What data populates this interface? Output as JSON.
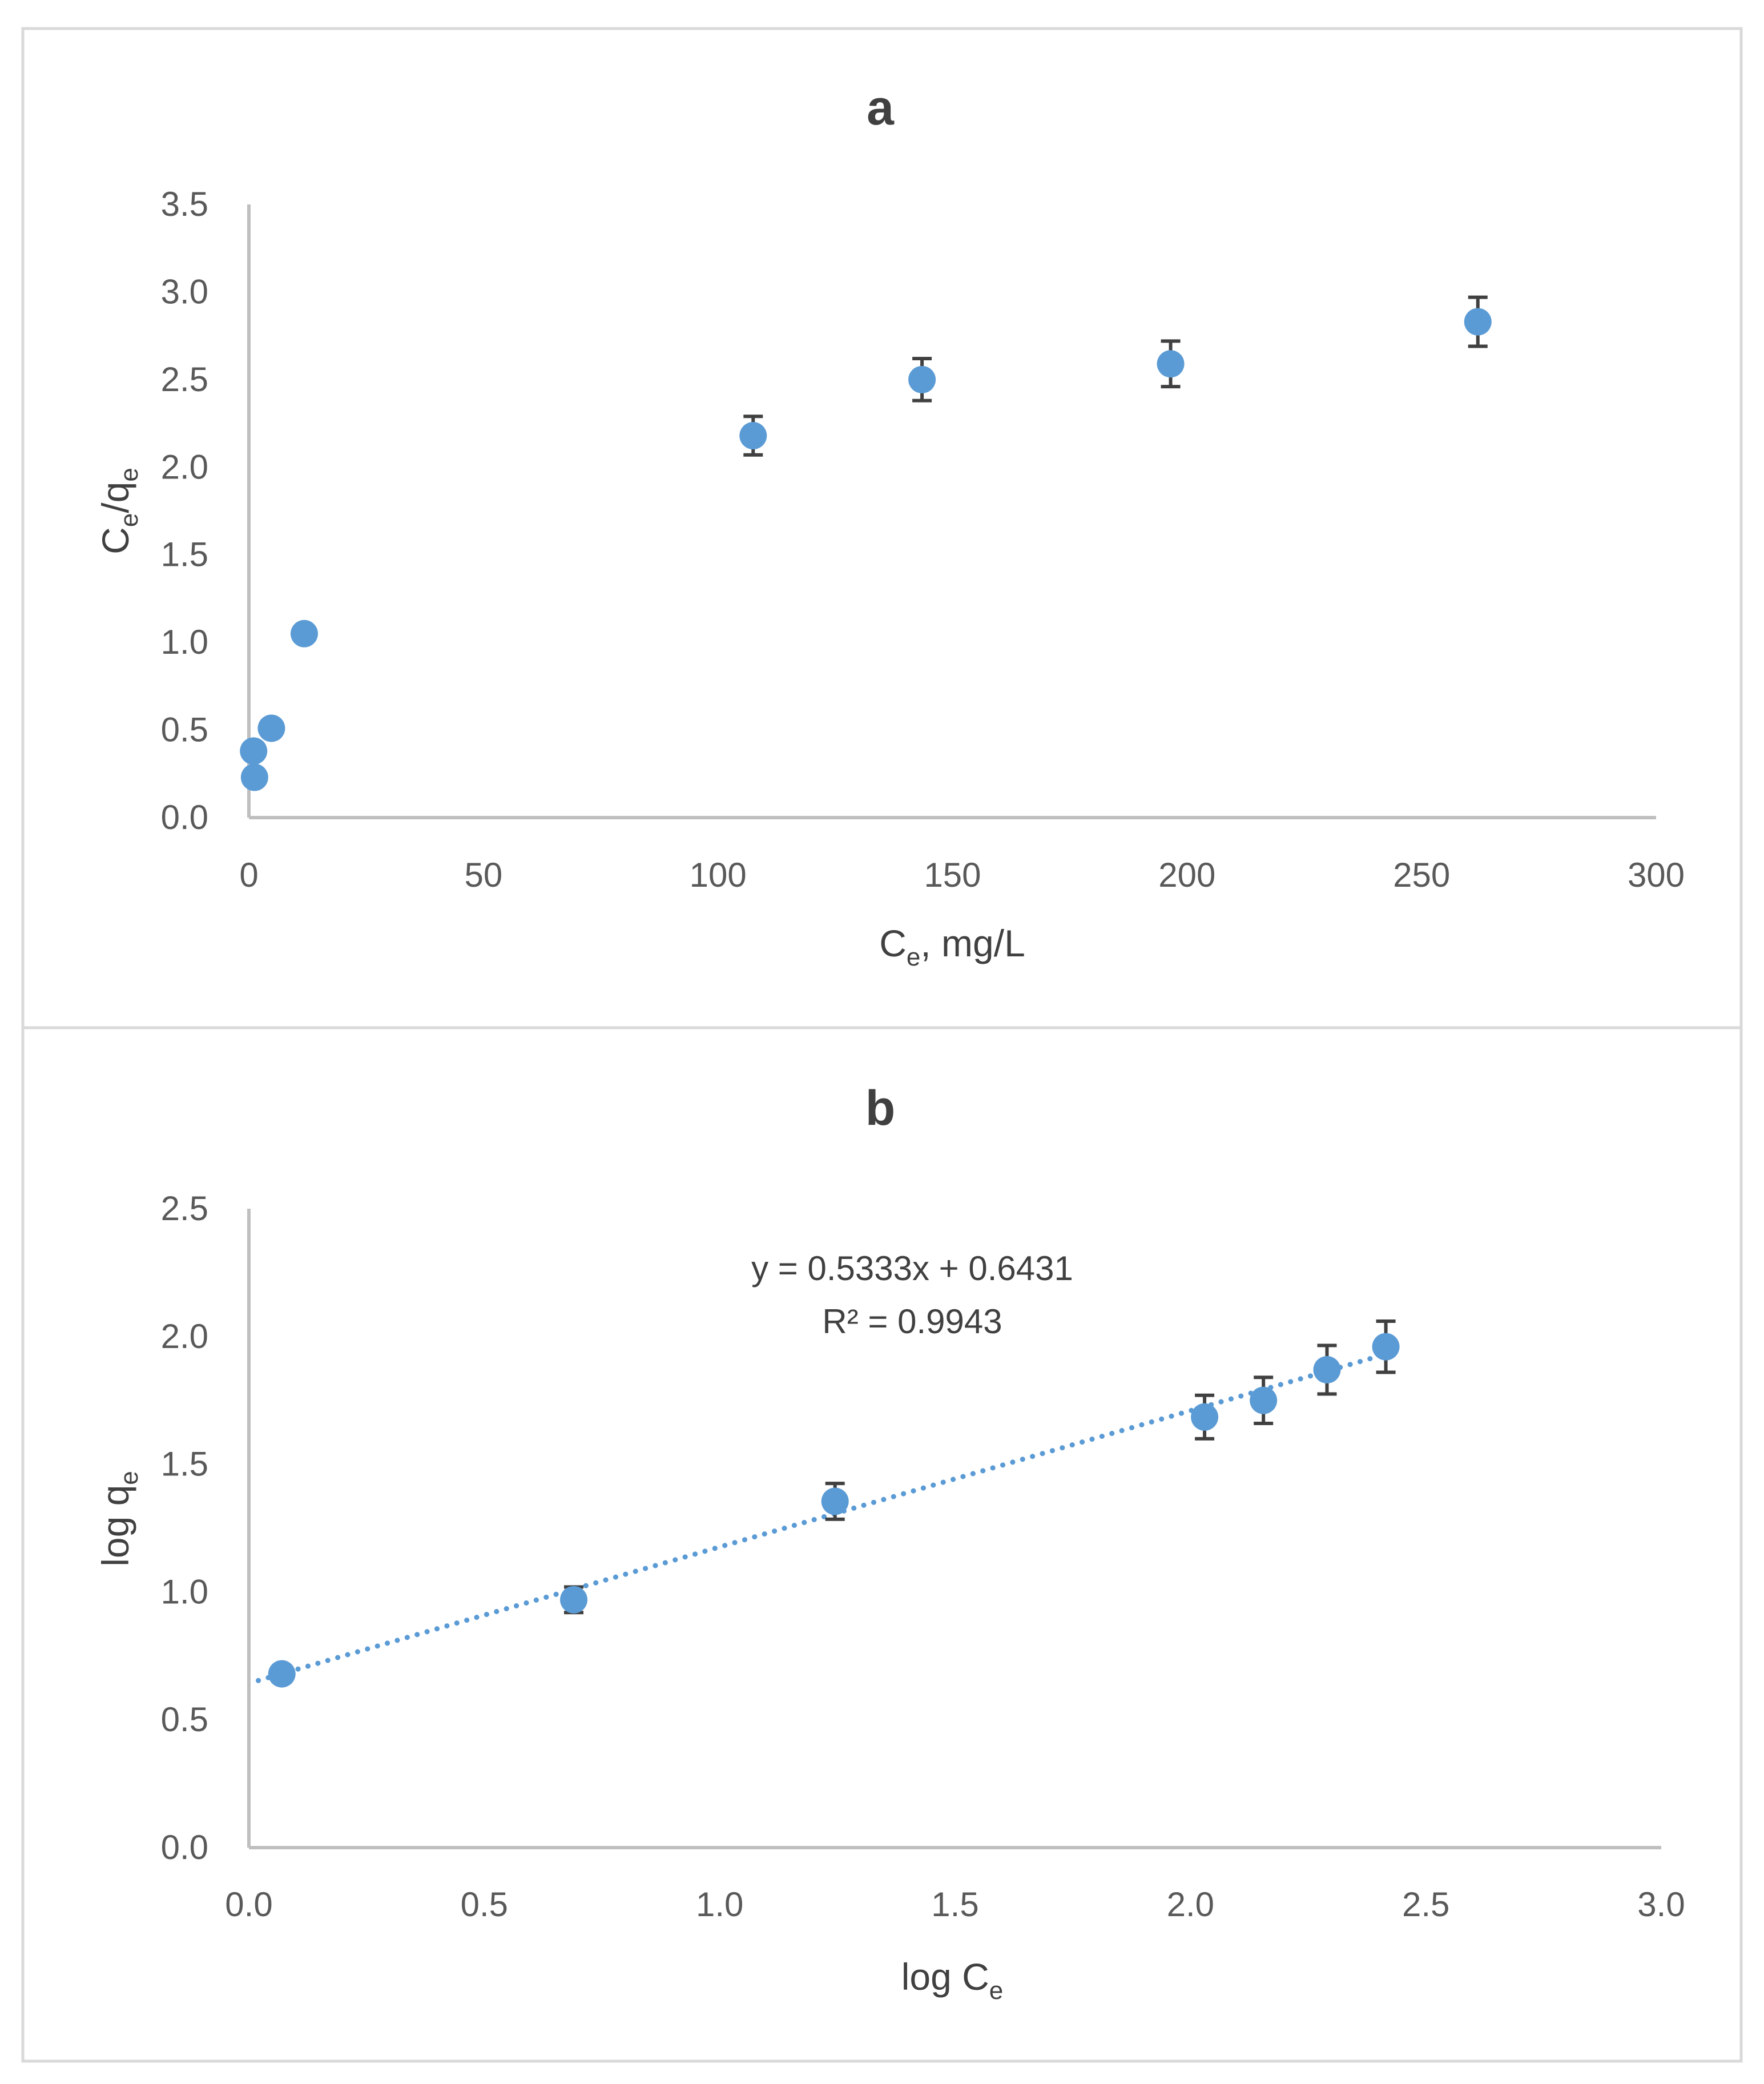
{
  "colors": {
    "marker": "#5b9bd5",
    "error_bar": "#404040",
    "trendline": "#5b9bd5",
    "axis": "#bfbfbf",
    "text": "#595959"
  },
  "chart_data": [
    {
      "type": "scatter",
      "title": "a",
      "xlabel": {
        "main": "C",
        "sub": "e",
        "tail": ", mg/L"
      },
      "ylabel": {
        "main": "C",
        "sub1": "e",
        "mid": "/q",
        "sub2": "e"
      },
      "xlim": [
        0,
        300
      ],
      "ylim": [
        0,
        3.5
      ],
      "xticks": [
        "0",
        "50",
        "100",
        "150",
        "200",
        "250",
        "300"
      ],
      "yticks": [
        "0.0",
        "0.5",
        "1.0",
        "1.5",
        "2.0",
        "2.5",
        "3.0",
        "3.5"
      ],
      "points": [
        {
          "x": 1,
          "y": 0.38,
          "err": 0.02
        },
        {
          "x": 1.2,
          "y": 0.23,
          "err": 0.02
        },
        {
          "x": 4.8,
          "y": 0.51,
          "err": 0.02
        },
        {
          "x": 11.8,
          "y": 1.05,
          "err": 0.03
        },
        {
          "x": 107.5,
          "y": 2.18,
          "err": 0.11
        },
        {
          "x": 143.5,
          "y": 2.5,
          "err": 0.12
        },
        {
          "x": 196.5,
          "y": 2.59,
          "err": 0.13
        },
        {
          "x": 262,
          "y": 2.83,
          "err": 0.14
        }
      ]
    },
    {
      "type": "scatter",
      "title": "b",
      "xlabel": {
        "main": "log C",
        "sub": "e",
        "tail": ""
      },
      "ylabel": {
        "main": "log q",
        "sub": "e"
      },
      "xlim": [
        0,
        3
      ],
      "ylim": [
        0,
        2.5
      ],
      "xticks": [
        "0.0",
        "0.5",
        "1.0",
        "1.5",
        "2.0",
        "2.5",
        "3.0"
      ],
      "yticks": [
        "0.0",
        "0.5",
        "1.0",
        "1.5",
        "2.0",
        "2.5"
      ],
      "points": [
        {
          "x": 0.07,
          "y": 0.68,
          "err": 0.02
        },
        {
          "x": 0.69,
          "y": 0.97,
          "err": 0.05
        },
        {
          "x": 1.245,
          "y": 1.355,
          "err": 0.07
        },
        {
          "x": 2.03,
          "y": 1.685,
          "err": 0.085
        },
        {
          "x": 2.155,
          "y": 1.75,
          "err": 0.09
        },
        {
          "x": 2.29,
          "y": 1.87,
          "err": 0.095
        },
        {
          "x": 2.415,
          "y": 1.96,
          "err": 0.1
        }
      ],
      "trendline": {
        "type": "linear",
        "slope": 0.5333,
        "intercept": 0.6431,
        "x_range": [
          0.02,
          2.42
        ],
        "equation": "y = 0.5333x + 0.6431",
        "r_squared": "R² = 0.9943"
      }
    }
  ]
}
